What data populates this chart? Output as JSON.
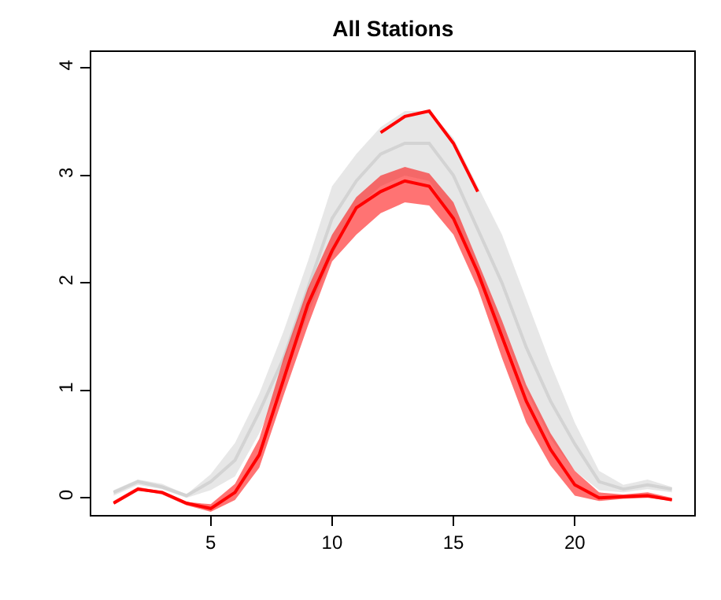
{
  "chart_data": {
    "type": "line",
    "title": "All Stations",
    "x": [
      1,
      2,
      3,
      4,
      5,
      6,
      7,
      8,
      9,
      10,
      11,
      12,
      13,
      14,
      15,
      16,
      17,
      18,
      19,
      20,
      21,
      22,
      23,
      24
    ],
    "series": [
      {
        "color": "#d3d3d3",
        "values": [
          0.05,
          0.15,
          0.1,
          0.02,
          0.15,
          0.35,
          0.8,
          1.3,
          1.95,
          2.6,
          2.95,
          3.2,
          3.3,
          3.3,
          3.0,
          2.5,
          2.0,
          1.4,
          0.9,
          0.5,
          0.15,
          0.08,
          0.12,
          0.08
        ],
        "lower": [
          0.02,
          0.12,
          0.08,
          0.0,
          0.07,
          0.2,
          0.6,
          1.1,
          1.7,
          2.25,
          2.7,
          2.9,
          3.0,
          2.95,
          2.6,
          2.1,
          1.55,
          1.0,
          0.55,
          0.25,
          0.07,
          0.05,
          0.08,
          0.05
        ],
        "upper": [
          0.07,
          0.17,
          0.13,
          0.03,
          0.22,
          0.51,
          0.97,
          1.55,
          2.2,
          2.9,
          3.2,
          3.45,
          3.6,
          3.6,
          3.35,
          2.9,
          2.45,
          1.85,
          1.25,
          0.7,
          0.25,
          0.12,
          0.17,
          0.1
        ]
      },
      {
        "color": "#ff0000",
        "values": [
          -0.05,
          0.08,
          0.05,
          -0.05,
          -0.1,
          0.05,
          0.4,
          1.1,
          1.8,
          2.3,
          2.7,
          2.85,
          2.95,
          2.9,
          2.6,
          2.1,
          1.5,
          0.9,
          0.45,
          0.12,
          0.0,
          0.01,
          0.02,
          -0.02
        ],
        "lower": [
          -0.06,
          0.07,
          0.03,
          -0.07,
          -0.13,
          -0.02,
          0.28,
          0.95,
          1.6,
          2.2,
          2.45,
          2.65,
          2.75,
          2.72,
          2.45,
          1.95,
          1.3,
          0.7,
          0.3,
          0.02,
          -0.03,
          -0.01,
          0.0,
          -0.03
        ],
        "upper": [
          -0.03,
          0.1,
          0.06,
          -0.04,
          -0.06,
          0.13,
          0.55,
          1.3,
          1.95,
          2.45,
          2.8,
          3.0,
          3.08,
          3.02,
          2.75,
          2.2,
          1.65,
          1.05,
          0.6,
          0.25,
          0.05,
          0.03,
          0.05,
          0.0
        ]
      },
      {
        "color": "#ff0000",
        "values": [
          null,
          null,
          null,
          null,
          null,
          null,
          null,
          null,
          null,
          null,
          null,
          3.4,
          3.55,
          3.6,
          3.3,
          2.85,
          null,
          null,
          null,
          null,
          null,
          null,
          null,
          null
        ]
      }
    ],
    "xlim": [
      0.08,
      24.92
    ],
    "xticks": [
      5,
      10,
      15,
      20
    ],
    "ylim": [
      -0.16,
      4.15
    ],
    "yticks": [
      0,
      1,
      2,
      3,
      4
    ],
    "grid": false,
    "marker": "none",
    "line_style": "solid"
  }
}
